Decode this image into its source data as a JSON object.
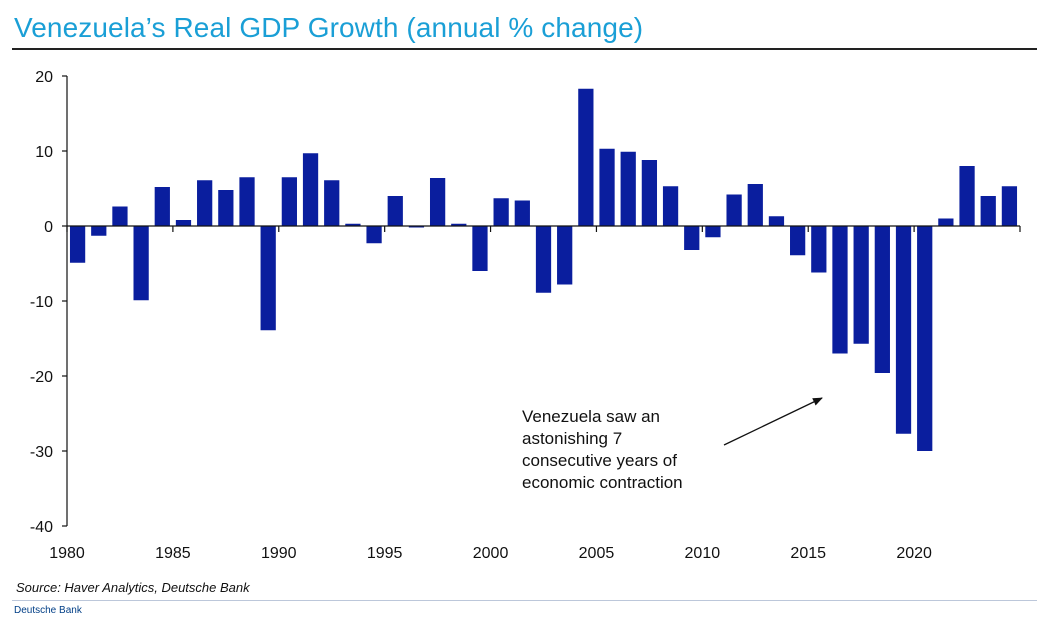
{
  "chart_data": {
    "type": "bar",
    "title": "Venezuela’s Real GDP Growth (annual % change)",
    "xlabel": "",
    "ylabel": "",
    "ylim": [
      -40,
      20
    ],
    "yticks": [
      20,
      10,
      0,
      -10,
      -20,
      -30,
      -40
    ],
    "xtick_labels": [
      "1980",
      "1985",
      "1990",
      "1995",
      "2000",
      "2005",
      "2010",
      "2015",
      "2020"
    ],
    "categories": [
      1980,
      1981,
      1982,
      1983,
      1984,
      1985,
      1986,
      1987,
      1988,
      1989,
      1990,
      1991,
      1992,
      1993,
      1994,
      1995,
      1996,
      1997,
      1998,
      1999,
      2000,
      2001,
      2002,
      2003,
      2004,
      2005,
      2006,
      2007,
      2008,
      2009,
      2010,
      2011,
      2012,
      2013,
      2014,
      2015,
      2016,
      2017,
      2018,
      2019,
      2020,
      2021,
      2022,
      2023,
      2024
    ],
    "values": [
      -4.9,
      -1.3,
      2.6,
      -9.9,
      5.2,
      0.8,
      6.1,
      4.8,
      6.5,
      -13.9,
      6.5,
      9.7,
      6.1,
      0.3,
      -2.3,
      4.0,
      -0.2,
      6.4,
      0.3,
      -6.0,
      3.7,
      3.4,
      -8.9,
      -7.8,
      18.3,
      10.3,
      9.9,
      8.8,
      5.3,
      -3.2,
      -1.5,
      4.2,
      5.6,
      1.3,
      -3.9,
      -6.2,
      -17.0,
      -15.7,
      -19.6,
      -27.7,
      -30.0,
      1.0,
      8.0,
      4.0,
      5.3
    ],
    "bar_color": "#0a1e9e",
    "annotation": [
      "Venezuela saw an",
      "astonishing 7",
      "consecutive years of",
      "economic contraction"
    ]
  },
  "source": "Source: Haver Analytics, Deutsche Bank",
  "footer": "Deutsche Bank"
}
